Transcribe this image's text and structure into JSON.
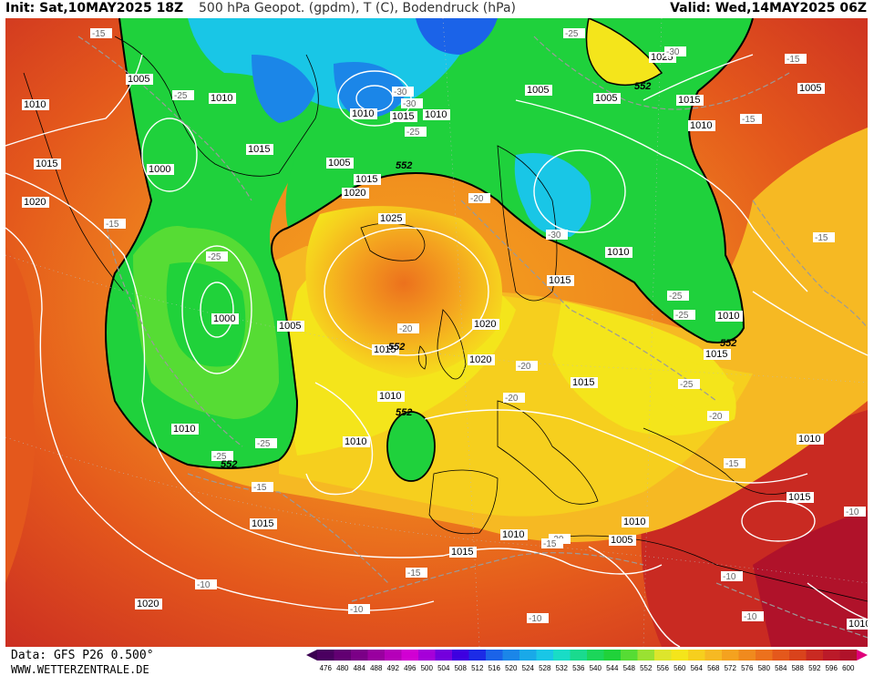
{
  "header": {
    "init": "Init: Sat,10MAY2025 18Z",
    "title": "500 hPa Geopot. (gpdm), T (C), Bodendruck (hPa)",
    "valid": "Valid: Wed,14MAY2025 06Z"
  },
  "footer": {
    "data_source": "Data: GFS P26 0.500°",
    "website": "WWW.WETTERZENTRALE.DE"
  },
  "colors": {
    "purple": "#7a0088",
    "blue": "#1b7dd9",
    "cyan": "#19c6e6",
    "green": "#1fd13c",
    "light_green": "#7be53c",
    "yellow": "#f4e51b",
    "light_orange": "#f6b923",
    "orange": "#f08a1e",
    "red": "#d9431c",
    "dark_red": "#b0122a"
  },
  "legend": {
    "ticks": [
      "476",
      "480",
      "484",
      "488",
      "492",
      "496",
      "500",
      "504",
      "508",
      "512",
      "516",
      "520",
      "524",
      "528",
      "532",
      "536",
      "540",
      "544",
      "548",
      "552",
      "556",
      "560",
      "564",
      "568",
      "572",
      "576",
      "580",
      "584",
      "588",
      "592",
      "596",
      "600"
    ],
    "colors": [
      "#4a0060",
      "#620072",
      "#7b0087",
      "#99009f",
      "#b500b9",
      "#d100d3",
      "#a600d9",
      "#7400dd",
      "#3e00e0",
      "#1c2be6",
      "#1b63e8",
      "#1b86e8",
      "#19a9e8",
      "#19c6e6",
      "#19dcc6",
      "#1ada8e",
      "#1cd65a",
      "#20d23a",
      "#56dc34",
      "#9ae132",
      "#dde52c",
      "#f4e51b",
      "#f6cf1e",
      "#f6b923",
      "#f4a21f",
      "#f08a1e",
      "#ec711d",
      "#e4581c",
      "#d9431c",
      "#c92a22",
      "#bb1a29",
      "#b0122a"
    ]
  },
  "isobars": [
    {
      "value": "1010",
      "id": "a"
    },
    {
      "value": "1005",
      "id": "b"
    },
    {
      "value": "1010",
      "id": "c"
    },
    {
      "value": "1015",
      "id": "d"
    },
    {
      "value": "1000",
      "id": "e"
    },
    {
      "value": "1020",
      "id": "f"
    },
    {
      "value": "1015",
      "id": "g"
    },
    {
      "value": "1005",
      "id": "h"
    },
    {
      "value": "1000",
      "id": "i"
    },
    {
      "value": "1005",
      "id": "j"
    },
    {
      "value": "1025",
      "id": "k"
    },
    {
      "value": "1010",
      "id": "l"
    },
    {
      "value": "1005",
      "id": "m"
    },
    {
      "value": "1015",
      "id": "n"
    },
    {
      "value": "1010",
      "id": "o"
    },
    {
      "value": "1010",
      "id": "p"
    },
    {
      "value": "1005",
      "id": "q"
    },
    {
      "value": "1015",
      "id": "r"
    },
    {
      "value": "1020",
      "id": "s"
    },
    {
      "value": "1025",
      "id": "t"
    },
    {
      "value": "1015",
      "id": "u"
    },
    {
      "value": "1020",
      "id": "v"
    },
    {
      "value": "1010",
      "id": "w"
    },
    {
      "value": "1010",
      "id": "x"
    },
    {
      "value": "1015",
      "id": "y"
    },
    {
      "value": "1010",
      "id": "z"
    },
    {
      "value": "1015",
      "id": "aa"
    },
    {
      "value": "1020",
      "id": "ab"
    },
    {
      "value": "1015",
      "id": "ac"
    },
    {
      "value": "1010",
      "id": "ad"
    },
    {
      "value": "1005",
      "id": "ae"
    },
    {
      "value": "1015",
      "id": "af"
    },
    {
      "value": "1010",
      "id": "ag"
    },
    {
      "value": "1010",
      "id": "ah"
    },
    {
      "value": "1025",
      "id": "ai"
    },
    {
      "value": "1020",
      "id": "aj"
    },
    {
      "value": "1015",
      "id": "ak"
    },
    {
      "value": "1010",
      "id": "al"
    },
    {
      "value": "1010",
      "id": "am"
    },
    {
      "value": "1015",
      "id": "an"
    },
    {
      "value": "1005",
      "id": "ao"
    },
    {
      "value": "1015",
      "id": "ap"
    },
    {
      "value": "1010",
      "id": "aq"
    },
    {
      "value": "1010",
      "id": "ar"
    },
    {
      "value": "1010",
      "id": "as"
    }
  ],
  "temps": [
    "-15",
    "-25",
    "-25",
    "-30",
    "-30",
    "-30",
    "-25",
    "-25",
    "-20",
    "-15",
    "-25",
    "-25",
    "-25",
    "-20",
    "-20",
    "-20",
    "-25",
    "-20",
    "-20",
    "-25",
    "-15",
    "-15",
    "-15",
    "-10",
    "-15",
    "-15",
    "-10",
    "-10",
    "-10",
    "-10",
    "-15",
    "-15",
    "-10",
    "-10",
    "-30",
    "-30",
    "-15",
    "-25"
  ],
  "contour_552_labels": [
    "552",
    "552",
    "552",
    "552",
    "552",
    "552"
  ]
}
